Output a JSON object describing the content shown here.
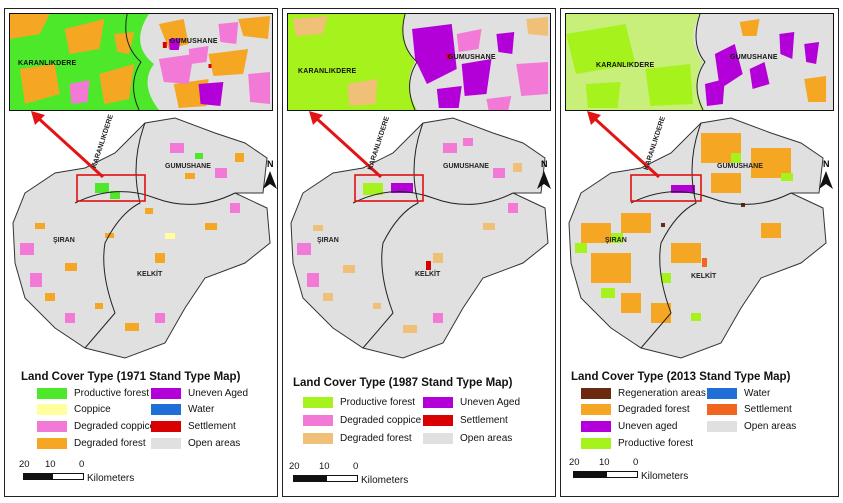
{
  "colors": {
    "productive_forest_1971": "#4ee82a",
    "productive_forest_1987": "#a6f21c",
    "productive_forest_2013": "#a6f21c",
    "coppice": "#ffff9e",
    "degraded_coppice": "#f27ad6",
    "degraded_forest": "#f5a623",
    "degraded_forest_1987": "#f0c078",
    "uneven_aged": "#b400d8",
    "water": "#1f6fd6",
    "settlement_red": "#d80000",
    "settlement_orange": "#f0661e",
    "open_areas": "#e0e0e0",
    "regeneration_areas": "#6b2a10",
    "arrow": "#e31414",
    "highlight_box": "#e01010"
  },
  "panels": [
    {
      "inset_labels": {
        "left": "KARANLIKDERE",
        "right": "GUMUSHANE"
      },
      "map_labels": {
        "karanlikdere": "KARANLIKDERE",
        "gumushane": "GUMUSHANE",
        "siran": "ŞIRAN",
        "kelkit": "KELKİT"
      },
      "north": "N",
      "legend_title": "Land Cover Type (1971 Stand Type Map)",
      "legend": [
        {
          "label": "Productive forest",
          "color": "#4ee82a"
        },
        {
          "label": "Coppice",
          "color": "#ffff9e"
        },
        {
          "label": "Degraded coppice",
          "color": "#f27ad6"
        },
        {
          "label": "Degraded forest",
          "color": "#f5a623"
        },
        {
          "label": "Uneven Aged",
          "color": "#b400d8"
        },
        {
          "label": "Water",
          "color": "#1f6fd6"
        },
        {
          "label": "Settlement",
          "color": "#d80000"
        },
        {
          "label": "Open areas",
          "color": "#e0e0e0"
        }
      ],
      "scale": {
        "n20": "20",
        "n10": "10",
        "n0": "0",
        "units": "Kilometers"
      }
    },
    {
      "inset_labels": {
        "left": "KARANLIKDERE",
        "right": "GUMUSHANE"
      },
      "map_labels": {
        "karanlikdere": "KARANLIKDERE",
        "gumushane": "GUMUSHANE",
        "siran": "ŞIRAN",
        "kelkit": "KELKİT"
      },
      "north": "N",
      "legend_title": "Land Cover Type (1987 Stand Type Map)",
      "legend": [
        {
          "label": "Productive forest",
          "color": "#a6f21c"
        },
        {
          "label": "Degraded coppice",
          "color": "#f27ad6"
        },
        {
          "label": "Degraded forest",
          "color": "#f0c078"
        },
        {
          "label": "Uneven Aged",
          "color": "#b400d8"
        },
        {
          "label": "Settlement",
          "color": "#d80000"
        },
        {
          "label": "Open areas",
          "color": "#e0e0e0"
        }
      ],
      "scale": {
        "n20": "20",
        "n10": "10",
        "n0": "0",
        "units": "Kilometers"
      }
    },
    {
      "inset_labels": {
        "left": "KARANLIKDERE",
        "right": "GUMUSHANE"
      },
      "map_labels": {
        "karanlikdere": "KARANLIKDERE",
        "gumushane": "GUMUSHANE",
        "siran": "ŞIRAN",
        "kelkit": "KELKİT"
      },
      "north": "N",
      "legend_title": "Land Cover Type (2013 Stand Type Map)",
      "legend": [
        {
          "label": "Regeneration areas",
          "color": "#6b2a10"
        },
        {
          "label": "Degraded forest",
          "color": "#f5a623"
        },
        {
          "label": "Uneven aged",
          "color": "#b400d8"
        },
        {
          "label": "Productive forest",
          "color": "#a6f21c"
        },
        {
          "label": "Water",
          "color": "#1f6fd6"
        },
        {
          "label": "Settlement",
          "color": "#f0661e"
        },
        {
          "label": "Open areas",
          "color": "#e0e0e0"
        }
      ],
      "scale": {
        "n20": "20",
        "n10": "10",
        "n0": "0",
        "units": "Kilometers"
      }
    }
  ]
}
